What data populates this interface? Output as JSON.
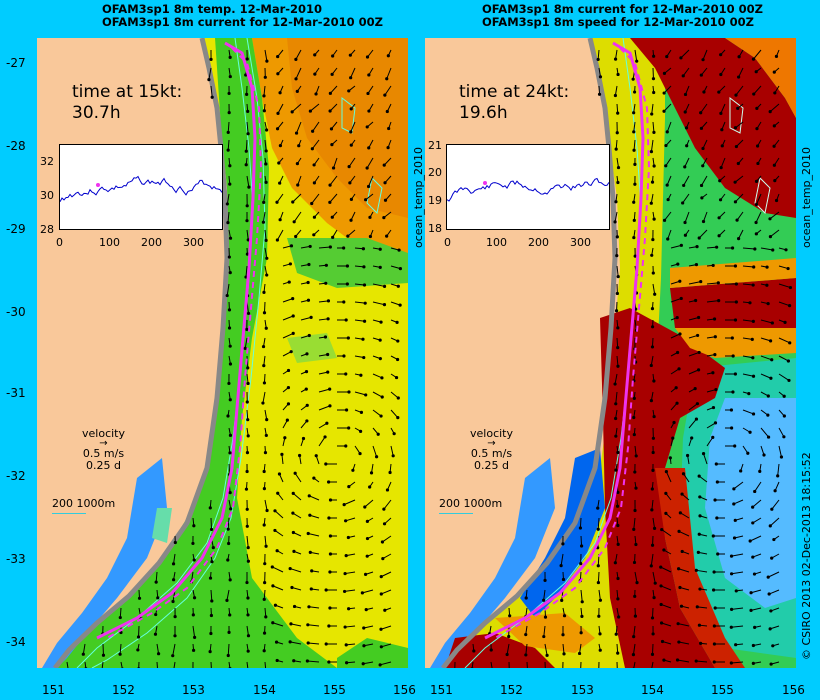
{
  "left_panel": {
    "title_line1": "OFAM3sp1 8m temp. 12-Mar-2010",
    "title_line2": "OFAM3sp1 8m current for 12-Mar-2010 00Z",
    "time_label": "time at 15kt:",
    "time_value": "30.7h",
    "inset_yticks": [
      "32",
      "30",
      "28"
    ],
    "inset_xticks": [
      "0",
      "100",
      "200",
      "300"
    ],
    "colorbar_label": "ocean_temp_2010"
  },
  "right_panel": {
    "title_line1": "OFAM3sp1 8m current for 12-Mar-2010 00Z",
    "title_line2": "OFAM3sp1 8m speed for 12-Mar-2010 00Z",
    "time_label": "time at 24kt:",
    "time_value": "19.6h",
    "inset_yticks": [
      "21",
      "20",
      "19",
      "18"
    ],
    "inset_xticks": [
      "0",
      "100",
      "200",
      "300"
    ],
    "colorbar_label": "ocean_temp_2010"
  },
  "velocity_legend": {
    "label": "velocity",
    "speed": "0.5 m/s",
    "duration": "0.25 d"
  },
  "scale_bar": {
    "label": "200  1000m"
  },
  "lat_ticks": [
    "-27",
    "-28",
    "-29",
    "-30",
    "-31",
    "-32",
    "-33",
    "-34"
  ],
  "lon_ticks": [
    "151",
    "152",
    "153",
    "154",
    "155",
    "156"
  ],
  "credit": "© CSIRO 2013   02-Dec-2013 18:15:52",
  "colors": {
    "background": "#00ccff",
    "land": "#f9c89a",
    "track": "#ee33ee",
    "inset_line": "#0000cc"
  }
}
